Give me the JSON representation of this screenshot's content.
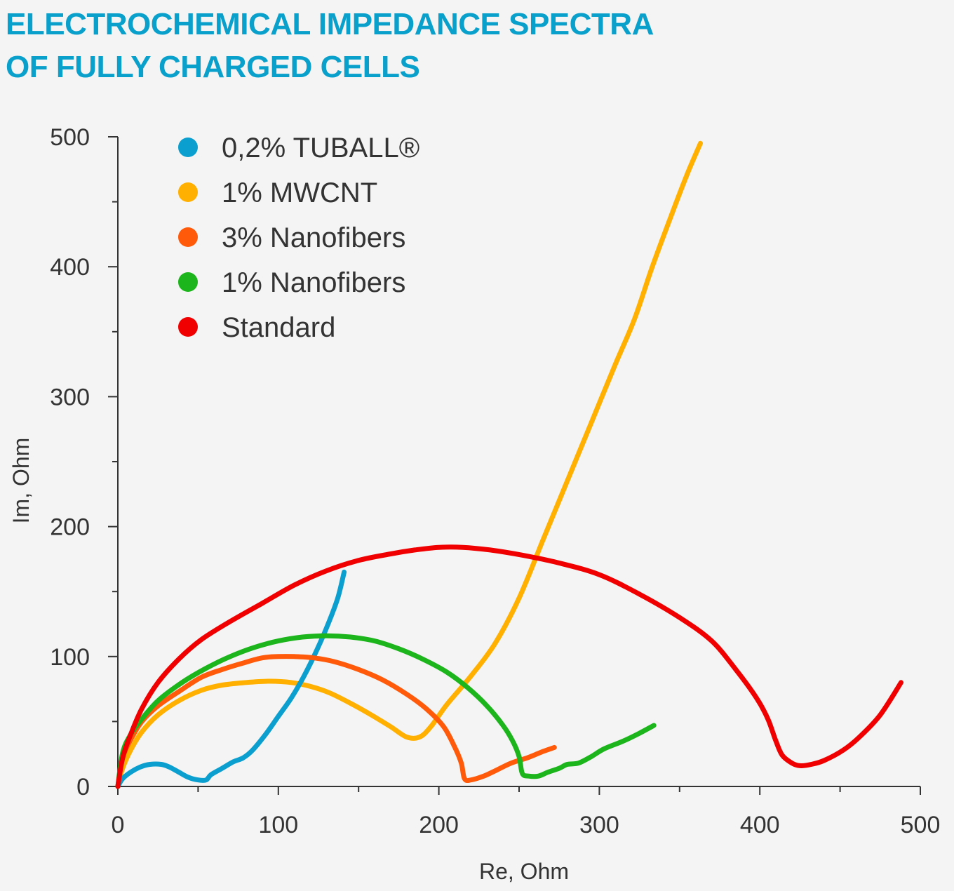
{
  "title_lines": [
    "ELECTROCHEMICAL IMPEDANCE SPECTRA",
    "OF FULLY CHARGED CELLS"
  ],
  "chart_data": {
    "type": "line",
    "xlabel": "Re, Ohm",
    "ylabel": "Im, Ohm",
    "xlim": [
      0,
      500
    ],
    "ylim": [
      0,
      500
    ],
    "xticks": [
      0,
      100,
      200,
      300,
      400,
      500
    ],
    "yticks": [
      0,
      100,
      200,
      300,
      400,
      500
    ],
    "grid": false,
    "legend_position": "top-left",
    "series": [
      {
        "name": "0,2% TUBALL®",
        "color": "#0a9fcf",
        "points": [
          [
            0,
            0
          ],
          [
            3,
            6
          ],
          [
            8,
            11
          ],
          [
            14,
            15
          ],
          [
            20,
            17
          ],
          [
            27,
            17
          ],
          [
            32,
            15
          ],
          [
            38,
            11
          ],
          [
            44,
            7
          ],
          [
            50,
            5
          ],
          [
            55,
            5
          ],
          [
            58,
            9
          ],
          [
            65,
            14
          ],
          [
            72,
            19
          ],
          [
            78,
            22
          ],
          [
            84,
            28
          ],
          [
            92,
            40
          ],
          [
            100,
            54
          ],
          [
            108,
            68
          ],
          [
            116,
            85
          ],
          [
            124,
            105
          ],
          [
            131,
            125
          ],
          [
            137,
            145
          ],
          [
            141,
            165
          ]
        ]
      },
      {
        "name": "1% MWCNT",
        "color": "#ffb000",
        "points": [
          [
            0,
            0
          ],
          [
            3,
            14
          ],
          [
            8,
            28
          ],
          [
            15,
            42
          ],
          [
            25,
            55
          ],
          [
            38,
            66
          ],
          [
            52,
            74
          ],
          [
            65,
            78
          ],
          [
            80,
            80
          ],
          [
            95,
            81
          ],
          [
            108,
            80
          ],
          [
            120,
            77
          ],
          [
            132,
            72
          ],
          [
            145,
            64
          ],
          [
            158,
            55
          ],
          [
            170,
            46
          ],
          [
            180,
            38
          ],
          [
            188,
            38
          ],
          [
            195,
            46
          ],
          [
            205,
            63
          ],
          [
            220,
            85
          ],
          [
            235,
            110
          ],
          [
            250,
            145
          ],
          [
            265,
            190
          ],
          [
            280,
            235
          ],
          [
            295,
            280
          ],
          [
            310,
            325
          ],
          [
            322,
            360
          ],
          [
            333,
            400
          ],
          [
            345,
            440
          ],
          [
            355,
            472
          ],
          [
            363,
            495
          ]
        ]
      },
      {
        "name": "3% Nanofibers",
        "color": "#ff5a0a",
        "points": [
          [
            0,
            0
          ],
          [
            3,
            22
          ],
          [
            8,
            36
          ],
          [
            15,
            50
          ],
          [
            25,
            62
          ],
          [
            38,
            73
          ],
          [
            52,
            84
          ],
          [
            65,
            90
          ],
          [
            78,
            95
          ],
          [
            90,
            99
          ],
          [
            100,
            100
          ],
          [
            110,
            100
          ],
          [
            122,
            99
          ],
          [
            135,
            96
          ],
          [
            150,
            90
          ],
          [
            165,
            82
          ],
          [
            180,
            71
          ],
          [
            192,
            60
          ],
          [
            203,
            46
          ],
          [
            210,
            30
          ],
          [
            214,
            18
          ],
          [
            216,
            6
          ],
          [
            220,
            5
          ],
          [
            228,
            8
          ],
          [
            235,
            12
          ],
          [
            245,
            18
          ],
          [
            255,
            22
          ],
          [
            265,
            27
          ],
          [
            272,
            30
          ]
        ]
      },
      {
        "name": "1% Nanofibers",
        "color": "#1cb51c",
        "points": [
          [
            0,
            0
          ],
          [
            3,
            26
          ],
          [
            8,
            40
          ],
          [
            15,
            52
          ],
          [
            25,
            66
          ],
          [
            40,
            80
          ],
          [
            55,
            91
          ],
          [
            70,
            100
          ],
          [
            85,
            107
          ],
          [
            100,
            112
          ],
          [
            115,
            115
          ],
          [
            130,
            116
          ],
          [
            145,
            115
          ],
          [
            160,
            112
          ],
          [
            175,
            106
          ],
          [
            190,
            98
          ],
          [
            205,
            88
          ],
          [
            218,
            76
          ],
          [
            230,
            62
          ],
          [
            240,
            47
          ],
          [
            246,
            35
          ],
          [
            250,
            23
          ],
          [
            252,
            10
          ],
          [
            256,
            8
          ],
          [
            262,
            8
          ],
          [
            268,
            11
          ],
          [
            275,
            14
          ],
          [
            280,
            17
          ],
          [
            287,
            18
          ],
          [
            295,
            23
          ],
          [
            303,
            29
          ],
          [
            315,
            35
          ],
          [
            325,
            41
          ],
          [
            334,
            47
          ]
        ]
      },
      {
        "name": "Standard",
        "color": "#f00000",
        "points": [
          [
            0,
            0
          ],
          [
            3,
            22
          ],
          [
            8,
            40
          ],
          [
            15,
            60
          ],
          [
            25,
            80
          ],
          [
            38,
            98
          ],
          [
            52,
            113
          ],
          [
            70,
            127
          ],
          [
            90,
            141
          ],
          [
            110,
            155
          ],
          [
            130,
            166
          ],
          [
            150,
            174
          ],
          [
            170,
            179
          ],
          [
            185,
            182
          ],
          [
            200,
            184
          ],
          [
            215,
            184
          ],
          [
            232,
            182
          ],
          [
            252,
            178
          ],
          [
            275,
            172
          ],
          [
            300,
            163
          ],
          [
            325,
            148
          ],
          [
            350,
            130
          ],
          [
            370,
            112
          ],
          [
            385,
            90
          ],
          [
            398,
            68
          ],
          [
            405,
            52
          ],
          [
            410,
            35
          ],
          [
            414,
            24
          ],
          [
            420,
            18
          ],
          [
            425,
            16
          ],
          [
            432,
            17
          ],
          [
            440,
            20
          ],
          [
            452,
            28
          ],
          [
            462,
            38
          ],
          [
            475,
            55
          ],
          [
            488,
            80
          ]
        ]
      }
    ]
  }
}
